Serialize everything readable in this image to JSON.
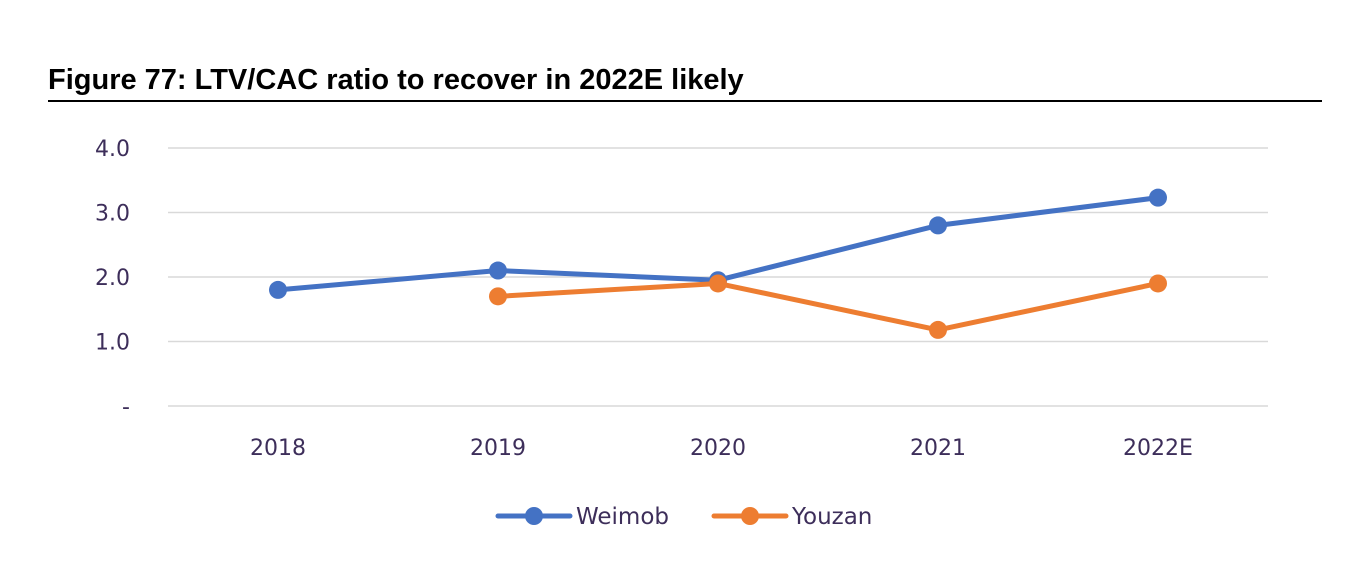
{
  "figure": {
    "title": "Figure 77: LTV/CAC ratio to recover in 2022E likely"
  },
  "chart_data": {
    "type": "line",
    "title": "Figure 77: LTV/CAC ratio to recover in 2022E likely",
    "xlabel": "",
    "ylabel": "",
    "categories": [
      "2018",
      "2019",
      "2020",
      "2021",
      "2022E"
    ],
    "ylim": [
      0,
      4
    ],
    "y_ticks": [
      {
        "value": 0,
        "label": "-"
      },
      {
        "value": 1,
        "label": "1.0"
      },
      {
        "value": 2,
        "label": "2.0"
      },
      {
        "value": 3,
        "label": "3.0"
      },
      {
        "value": 4,
        "label": "4.0"
      }
    ],
    "grid": "horizontal",
    "legend_position": "bottom",
    "series": [
      {
        "name": "Weimob",
        "color": "#4472c4",
        "values": [
          1.8,
          2.1,
          1.95,
          2.8,
          3.23
        ]
      },
      {
        "name": "Youzan",
        "color": "#ed7d31",
        "values": [
          null,
          1.7,
          1.9,
          1.18,
          1.9
        ]
      }
    ]
  }
}
